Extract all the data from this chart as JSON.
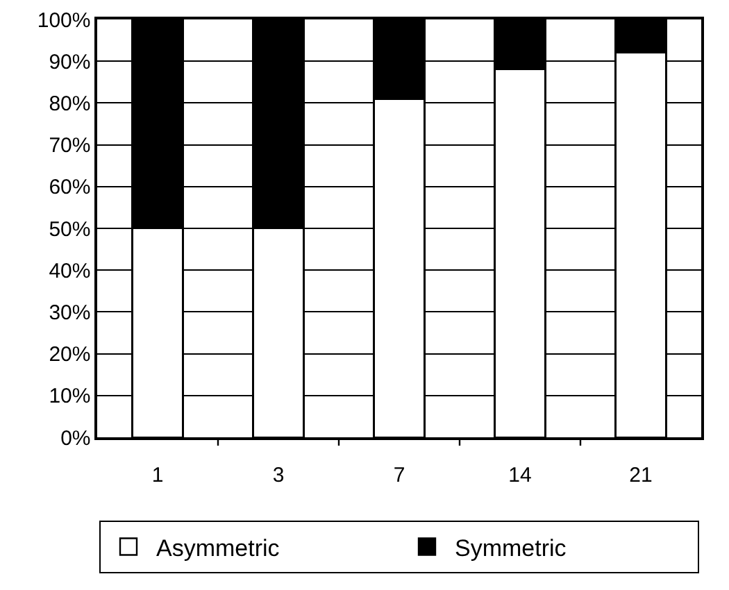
{
  "chart_data": {
    "type": "bar",
    "stacked": true,
    "categories": [
      "1",
      "3",
      "7",
      "14",
      "21"
    ],
    "series": [
      {
        "name": "Asymmetric",
        "color": "#ffffff",
        "values": [
          50,
          50,
          81,
          88,
          92
        ]
      },
      {
        "name": "Symmetric",
        "color": "#000000",
        "values": [
          50,
          50,
          19,
          12,
          8
        ]
      }
    ],
    "ylim": [
      0,
      100
    ],
    "yticks": [
      {
        "value": 0,
        "label": "0%"
      },
      {
        "value": 10,
        "label": "10%"
      },
      {
        "value": 20,
        "label": "20%"
      },
      {
        "value": 30,
        "label": "30%"
      },
      {
        "value": 40,
        "label": "40%"
      },
      {
        "value": 50,
        "label": "50%"
      },
      {
        "value": 60,
        "label": "60%"
      },
      {
        "value": 70,
        "label": "70%"
      },
      {
        "value": 80,
        "label": "80%"
      },
      {
        "value": 90,
        "label": "90%"
      },
      {
        "value": 100,
        "label": "100%"
      }
    ],
    "grid": "y",
    "legend": "bottom"
  }
}
